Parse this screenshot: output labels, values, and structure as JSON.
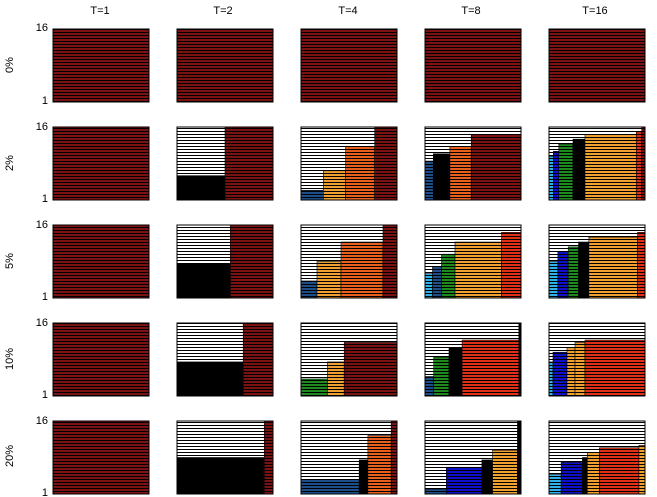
{
  "colors": {
    "white": "#ffffff",
    "black": "#000000",
    "dark_red": "#7a1212",
    "red": "#e03018",
    "orange_red": "#e8601c",
    "orange": "#f0a030",
    "green": "#1e8a1e",
    "blue": "#1010cc",
    "navy": "#1e4e8a",
    "cyan": "#30b0e8"
  },
  "chart_data": {
    "type": "bar",
    "col_titles": [
      "T=1",
      "T=2",
      "T=4",
      "T=8",
      "T=16"
    ],
    "row_labels": [
      "0%",
      "2%",
      "5%",
      "10%",
      "20%"
    ],
    "y_tick_labels": [
      "16",
      "1"
    ],
    "ylim": [
      1,
      16
    ],
    "panels": [
      [
        {
          "bars": [
            {
              "w": 1,
              "h": 16,
              "color": "dark_red"
            }
          ]
        },
        {
          "bars": [
            {
              "w": 1,
              "h": 16,
              "color": "dark_red"
            }
          ]
        },
        {
          "bars": [
            {
              "w": 1,
              "h": 16,
              "color": "dark_red"
            }
          ]
        },
        {
          "bars": [
            {
              "w": 1,
              "h": 16,
              "color": "dark_red"
            }
          ]
        },
        {
          "bars": [
            {
              "w": 1,
              "h": 16,
              "color": "dark_red"
            }
          ]
        }
      ],
      [
        {
          "bars": [
            {
              "w": 1,
              "h": 16,
              "color": "dark_red"
            }
          ]
        },
        {
          "bars": [
            {
              "w": 1,
              "h": 6,
              "color": "black"
            },
            {
              "w": 1,
              "h": 16,
              "color": "dark_red"
            }
          ]
        },
        {
          "bars": [
            {
              "w": 1,
              "h": 3,
              "color": "navy"
            },
            {
              "w": 1,
              "h": 7,
              "color": "orange"
            },
            {
              "w": 1.3,
              "h": 12,
              "color": "orange_red"
            },
            {
              "w": 1,
              "h": 16,
              "color": "dark_red"
            }
          ]
        },
        {
          "bars": [
            {
              "w": 0.35,
              "h": 9,
              "color": "navy"
            },
            {
              "w": 0.7,
              "h": 10.5,
              "color": "black"
            },
            {
              "w": 0.9,
              "h": 12,
              "color": "orange_red"
            },
            {
              "w": 2.1,
              "h": 14.5,
              "color": "dark_red"
            }
          ]
        },
        {
          "bars": [
            {
              "w": 0.2,
              "h": 10,
              "color": "cyan"
            },
            {
              "w": 0.25,
              "h": 11,
              "color": "blue"
            },
            {
              "w": 0.65,
              "h": 12.5,
              "color": "green"
            },
            {
              "w": 0.55,
              "h": 13.5,
              "color": "black"
            },
            {
              "w": 2.35,
              "h": 14.5,
              "color": "orange"
            },
            {
              "w": 0.25,
              "h": 15,
              "color": "red"
            },
            {
              "w": 0.15,
              "h": 16,
              "color": "dark_red"
            }
          ]
        }
      ],
      [
        {
          "bars": [
            {
              "w": 1,
              "h": 16,
              "color": "dark_red"
            }
          ]
        },
        {
          "bars": [
            {
              "w": 1,
              "h": 8,
              "color": "black"
            },
            {
              "w": 0.8,
              "h": 16,
              "color": "dark_red"
            }
          ]
        },
        {
          "bars": [
            {
              "w": 0.4,
              "h": 4.5,
              "color": "navy"
            },
            {
              "w": 0.6,
              "h": 8.5,
              "color": "orange"
            },
            {
              "w": 1.05,
              "h": 12.5,
              "color": "orange_red"
            },
            {
              "w": 0.35,
              "h": 16,
              "color": "dark_red"
            }
          ]
        },
        {
          "bars": [
            {
              "w": 0.25,
              "h": 6,
              "color": "cyan"
            },
            {
              "w": 0.3,
              "h": 7.5,
              "color": "navy"
            },
            {
              "w": 0.45,
              "h": 10,
              "color": "green"
            },
            {
              "w": 1.55,
              "h": 12.5,
              "color": "orange"
            },
            {
              "w": 0.65,
              "h": 14.5,
              "color": "red"
            }
          ]
        },
        {
          "bars": [
            {
              "w": 0.3,
              "h": 8.5,
              "color": "cyan"
            },
            {
              "w": 0.35,
              "h": 10.5,
              "color": "blue"
            },
            {
              "w": 0.35,
              "h": 11.5,
              "color": "green"
            },
            {
              "w": 0.35,
              "h": 12.5,
              "color": "black"
            },
            {
              "w": 1.65,
              "h": 13.5,
              "color": "orange"
            },
            {
              "w": 0.25,
              "h": 14.5,
              "color": "red"
            }
          ]
        }
      ],
      [
        {
          "bars": [
            {
              "w": 1,
              "h": 16,
              "color": "dark_red"
            }
          ]
        },
        {
          "bars": [
            {
              "w": 1,
              "h": 8,
              "color": "black"
            },
            {
              "w": 0.45,
              "h": 16,
              "color": "dark_red"
            }
          ]
        },
        {
          "bars": [
            {
              "w": 0.55,
              "h": 4.5,
              "color": "green"
            },
            {
              "w": 0.35,
              "h": 8,
              "color": "orange"
            },
            {
              "w": 1.1,
              "h": 12,
              "color": "dark_red"
            }
          ]
        },
        {
          "bars": [
            {
              "w": 0.2,
              "h": 5,
              "color": "navy"
            },
            {
              "w": 0.35,
              "h": 9,
              "color": "green"
            },
            {
              "w": 0.3,
              "h": 11,
              "color": "black"
            },
            {
              "w": 1.3,
              "h": 12.5,
              "color": "red"
            },
            {
              "w": 0.05,
              "h": 16,
              "color": "black"
            }
          ]
        },
        {
          "bars": [
            {
              "w": 0.1,
              "h": 8,
              "color": "cyan"
            },
            {
              "w": 0.35,
              "h": 10,
              "color": "blue"
            },
            {
              "w": 0.2,
              "h": 11,
              "color": "orange"
            },
            {
              "w": 0.25,
              "h": 12,
              "color": "orange"
            },
            {
              "w": 1.5,
              "h": 12.5,
              "color": "red"
            }
          ]
        }
      ],
      [
        {
          "bars": [
            {
              "w": 1,
              "h": 16,
              "color": "dark_red"
            }
          ]
        },
        {
          "bars": [
            {
              "w": 1,
              "h": 8.5,
              "color": "black"
            },
            {
              "w": 0.1,
              "h": 16,
              "color": "dark_red"
            }
          ]
        },
        {
          "bars": [
            {
              "w": 1,
              "h": 4,
              "color": "navy"
            },
            {
              "w": 0.15,
              "h": 8,
              "color": "black"
            },
            {
              "w": 0.4,
              "h": 13,
              "color": "orange_red"
            },
            {
              "w": 0.1,
              "h": 16,
              "color": "dark_red"
            }
          ]
        },
        {
          "bars": [
            {
              "w": 0.3,
              "h": 2,
              "color": "navy"
            },
            {
              "w": 0.5,
              "h": 6.5,
              "color": "blue"
            },
            {
              "w": 0.15,
              "h": 8,
              "color": "black"
            },
            {
              "w": 0.35,
              "h": 10,
              "color": "orange"
            },
            {
              "w": 0.05,
              "h": 16,
              "color": "black"
            }
          ]
        },
        {
          "bars": [
            {
              "w": 0.2,
              "h": 5,
              "color": "cyan"
            },
            {
              "w": 0.35,
              "h": 7.5,
              "color": "blue"
            },
            {
              "w": 0.08,
              "h": 8.5,
              "color": "black"
            },
            {
              "w": 0.2,
              "h": 9.5,
              "color": "orange"
            },
            {
              "w": 0.65,
              "h": 10.5,
              "color": "red"
            },
            {
              "w": 0.1,
              "h": 11,
              "color": "orange"
            }
          ]
        }
      ]
    ]
  }
}
